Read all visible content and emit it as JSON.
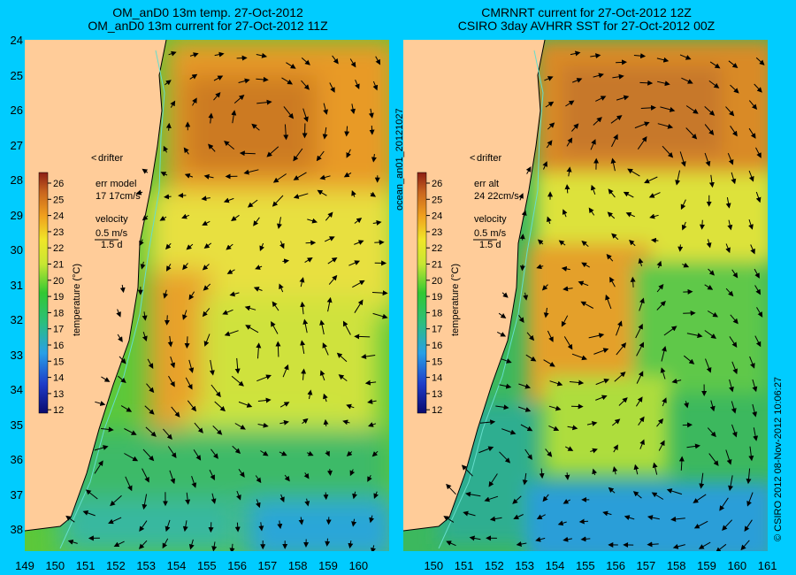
{
  "left_panel": {
    "title_line1": "OM_anD0 13m temp. 27-Oct-2012",
    "title_line2": "OM_anD0 13m current for 27-Oct-2012 11Z",
    "drifter_label": "drifter",
    "err_label": "err model",
    "err_value": "17 17cm/s",
    "velocity_label": "velocity",
    "velocity_scale": "0.5 m/s",
    "velocity_time": "1.5 d",
    "colorbar_label": "temperature (°C)"
  },
  "right_panel": {
    "title_line1": "CMRNRT current for 27-Oct-2012 12Z",
    "title_line2": "CSIRO 3day AVHRR SST for 27-Oct-2012 00Z",
    "drifter_label": "drifter",
    "err_label": "err alt",
    "err_value": "24 22cm/s",
    "velocity_label": "velocity",
    "velocity_scale": "0.5 m/s",
    "velocity_time": "1.5 d",
    "colorbar_label": "temperature (°C)"
  },
  "side_text_left": "ocean_an01_20121027",
  "side_text_right": "© CSIRO 2012   08-Nov-2012 10:06:27",
  "y_ticks": [
    "24",
    "25",
    "26",
    "27",
    "28",
    "29",
    "30",
    "31",
    "32",
    "33",
    "34",
    "35",
    "36",
    "37",
    "38"
  ],
  "x_ticks": [
    "149",
    "150",
    "151",
    "152",
    "153",
    "154",
    "155",
    "156",
    "157",
    "158",
    "159",
    "160",
    "161"
  ],
  "x_last_label": "161",
  "colorbar_ticks": [
    "26",
    "25",
    "24",
    "23",
    "22",
    "21",
    "20",
    "19",
    "18",
    "17",
    "16",
    "15",
    "14",
    "13",
    "12"
  ],
  "colors": {
    "background": "#00ccff",
    "land": "#ffcc99",
    "coast": "#66ddcc",
    "drifter": "#ff00ff"
  }
}
